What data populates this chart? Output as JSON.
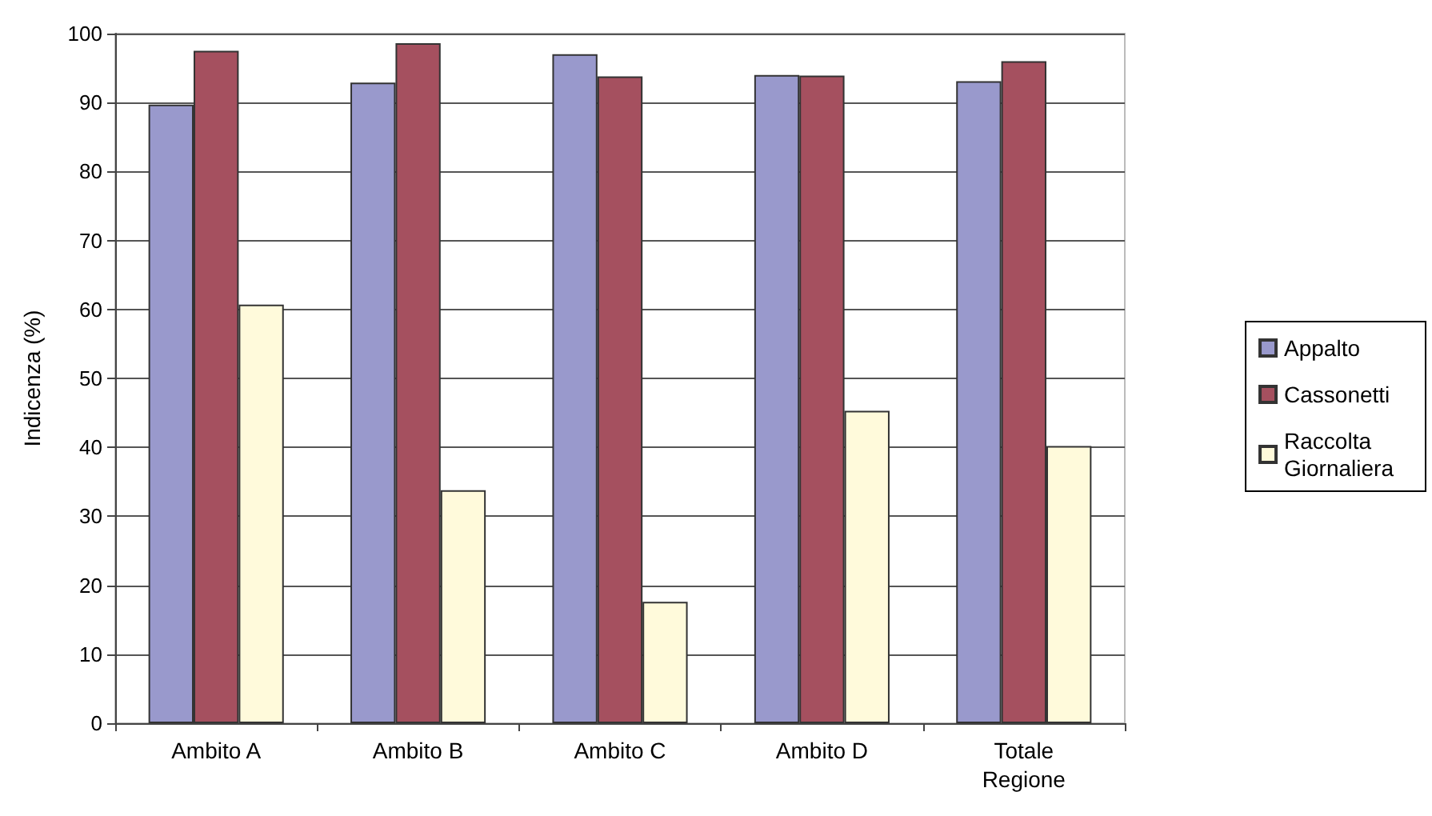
{
  "chart_data": {
    "type": "bar",
    "ylabel": "Indicenza (%)",
    "categories": [
      "Ambito A",
      "Ambito B",
      "Ambito C",
      "Ambito D",
      "Totale\nRegione"
    ],
    "series": [
      {
        "name": "Appalto",
        "color": "#9999cc",
        "values": [
          89.7,
          92.9,
          97.0,
          94.0,
          93.1
        ]
      },
      {
        "name": "Cassonetti",
        "color": "#a5505f",
        "values": [
          97.5,
          98.6,
          93.8,
          93.9,
          96.0
        ]
      },
      {
        "name": "Raccolta\nGiornaliera",
        "color": "#fffadb",
        "values": [
          60.7,
          33.8,
          17.6,
          45.3,
          40.2
        ]
      }
    ],
    "ylim": [
      0,
      100
    ],
    "yticks": [
      0,
      10,
      20,
      30,
      40,
      50,
      60,
      70,
      80,
      90,
      100
    ],
    "grid": "y",
    "legend": "right"
  }
}
